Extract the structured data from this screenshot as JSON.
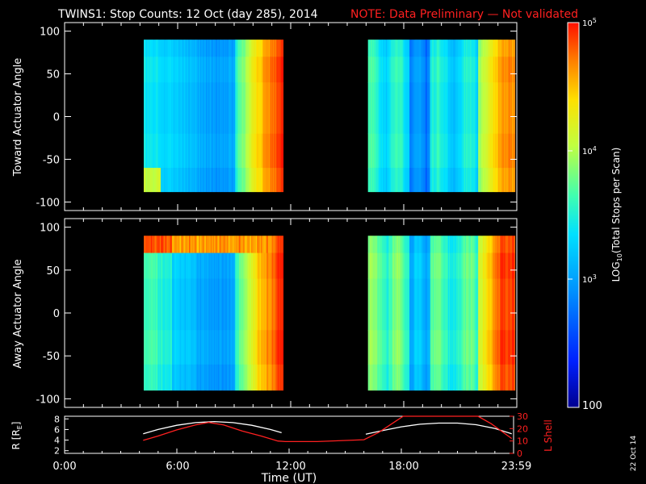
{
  "title": "TWINS1: Stop Counts: 12 Oct (day 285), 2014",
  "note": "NOTE: Data Preliminary — Not validated",
  "date_stamp": "22 Oct 14",
  "chart_data": [
    {
      "type": "heatmap",
      "ylabel": "Toward Actuator Angle",
      "ylim": [
        -110,
        110
      ],
      "yticks": [
        "100",
        "50",
        "0",
        "-50",
        "-100"
      ],
      "ytick_values": [
        100,
        50,
        0,
        -50,
        -100
      ],
      "xlim_hours": [
        0,
        24
      ],
      "data_ranges_hours": [
        [
          4.2,
          11.6
        ],
        [
          16.1,
          23.9
        ]
      ],
      "angle_range": [
        -88,
        90
      ],
      "description_of_levels": "log10 total stops per scan, ~2.9-5.0"
    },
    {
      "type": "heatmap",
      "ylabel": "Away Actuator Angle",
      "ylim": [
        -110,
        110
      ],
      "yticks": [
        "100",
        "50",
        "0",
        "-50",
        "-100"
      ],
      "ytick_values": [
        100,
        50,
        0,
        -50,
        -100
      ],
      "xlim_hours": [
        0,
        24
      ],
      "data_ranges_hours": [
        [
          4.2,
          11.6
        ],
        [
          16.1,
          23.9
        ]
      ],
      "angle_range": [
        -90,
        90
      ]
    },
    {
      "type": "line",
      "ylabel_left": "R [R",
      "ylabel_left_sub": "E",
      "ylabel_left_close": "]",
      "yticks_left": [
        "8",
        "6",
        "4",
        "2"
      ],
      "yticks_left_values": [
        8,
        6,
        4,
        2
      ],
      "ylim_left": [
        1.5,
        8.5
      ],
      "ylabel_right": "L Shell",
      "yticks_right": [
        "30",
        "20",
        "10",
        "0"
      ],
      "yticks_right_values": [
        30,
        20,
        10,
        0
      ],
      "ylim_right": [
        0,
        30
      ],
      "xlabel": "Time (UT)",
      "xticks": [
        "0:00",
        "6:00",
        "12:00",
        "18:00",
        "23:59"
      ],
      "xtick_hours": [
        0,
        6,
        12,
        18,
        23.98
      ],
      "series": [
        {
          "color": "#ffffff",
          "x": [
            4.2,
            5,
            6,
            7,
            8,
            9,
            10,
            11,
            11.6,
            16.1,
            17,
            18,
            19,
            20,
            21,
            22,
            23,
            23.9
          ],
          "y": [
            5.2,
            6.0,
            6.8,
            7.3,
            7.5,
            7.3,
            6.8,
            6.0,
            5.4,
            5.1,
            5.8,
            6.5,
            7.0,
            7.2,
            7.2,
            6.9,
            6.2,
            5.2
          ]
        },
        {
          "color": "#ff2020",
          "x": [
            4.2,
            5,
            6,
            7,
            7.7,
            8.5,
            9.5,
            10.5,
            11.4,
            11.8,
            13.5,
            16.0,
            16.8,
            17.8,
            18.1,
            22.1,
            22.8,
            23.9
          ],
          "y": [
            10.5,
            14,
            19,
            23,
            25,
            23,
            18,
            14,
            10,
            9.5,
            9.5,
            11,
            17,
            27,
            32,
            32,
            24,
            12
          ]
        }
      ]
    }
  ],
  "colorbar": {
    "label_prefix": "LOG",
    "label_sub": "10",
    "label_suffix": "(Total Stops per Scan)",
    "ticks": [
      {
        "base": "10",
        "exp": "5",
        "text": ""
      },
      {
        "base": "10",
        "exp": "4",
        "text": ""
      },
      {
        "base": "10",
        "exp": "3",
        "text": ""
      },
      {
        "base": "",
        "exp": "",
        "text": "100"
      }
    ],
    "tick_values": [
      5,
      4,
      3,
      2
    ],
    "range": [
      2,
      5
    ]
  }
}
